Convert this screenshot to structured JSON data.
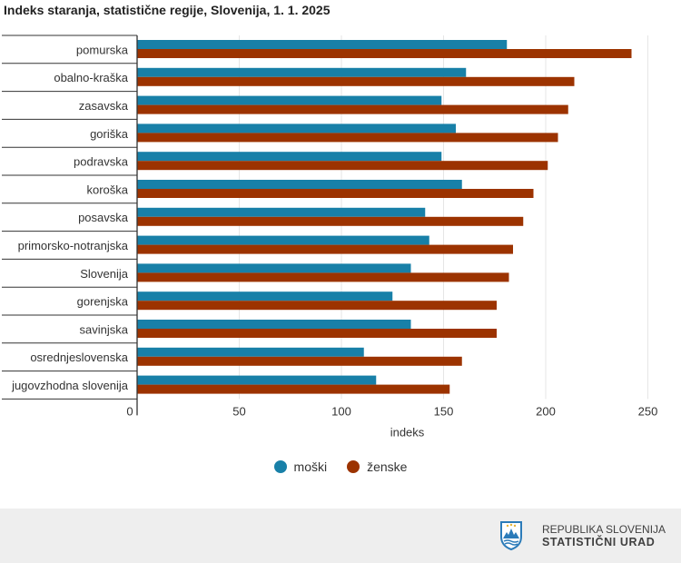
{
  "title": "Indeks staranja, statistične regije, Slovenija, 1. 1. 2025",
  "chart_data": {
    "type": "bar",
    "orientation": "horizontal",
    "title": "Indeks staranja, statistične regije, Slovenija, 1. 1. 2025",
    "xlabel": "indeks",
    "ylabel": "",
    "xlim": [
      0,
      260
    ],
    "xticks": [
      0,
      50,
      100,
      150,
      200,
      250
    ],
    "grid": true,
    "legend_position": "bottom-center",
    "categories": [
      "pomurska",
      "obalno-kraška",
      "zasavska",
      "goriška",
      "podravska",
      "koroška",
      "posavska",
      "primorsko-notranjska",
      "Slovenija",
      "gorenjska",
      "savinjska",
      "osrednjeslovenska",
      "jugovzhodna slovenija"
    ],
    "series": [
      {
        "name": "moški",
        "color": "#1880a8",
        "values": [
          181,
          161,
          149,
          156,
          149,
          159,
          141,
          143,
          134,
          125,
          134,
          111,
          117
        ]
      },
      {
        "name": "ženske",
        "color": "#9c3300",
        "values": [
          242,
          214,
          211,
          206,
          201,
          194,
          189,
          184,
          182,
          176,
          176,
          159,
          153
        ]
      }
    ]
  },
  "legend": {
    "items": [
      {
        "label": "moški",
        "color": "#1880a8"
      },
      {
        "label": "ženske",
        "color": "#9c3300"
      }
    ]
  },
  "footer": {
    "line1": "REPUBLIKA SLOVENIJA",
    "line2": "STATISTIČNI URAD",
    "logo_icon": "slovenia-coat-of-arms-icon"
  }
}
